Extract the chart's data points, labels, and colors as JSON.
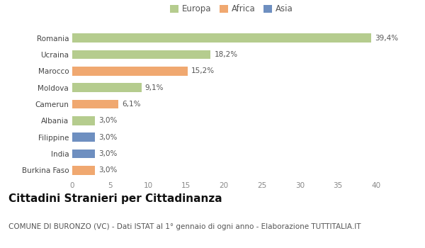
{
  "countries": [
    "Romania",
    "Ucraina",
    "Marocco",
    "Moldova",
    "Camerun",
    "Albania",
    "Filippine",
    "India",
    "Burkina Faso"
  ],
  "values": [
    39.4,
    18.2,
    15.2,
    9.1,
    6.1,
    3.0,
    3.0,
    3.0,
    3.0
  ],
  "labels": [
    "39,4%",
    "18,2%",
    "15,2%",
    "9,1%",
    "6,1%",
    "3,0%",
    "3,0%",
    "3,0%",
    "3,0%"
  ],
  "continents": [
    "Europa",
    "Europa",
    "Africa",
    "Europa",
    "Africa",
    "Europa",
    "Asia",
    "Asia",
    "Africa"
  ],
  "colors": {
    "Europa": "#b5cc8e",
    "Africa": "#f0a870",
    "Asia": "#6e8fc0"
  },
  "legend_order": [
    "Europa",
    "Africa",
    "Asia"
  ],
  "xlim": [
    0,
    42
  ],
  "xticks": [
    0,
    5,
    10,
    15,
    20,
    25,
    30,
    35,
    40
  ],
  "title": "Cittadini Stranieri per Cittadinanza",
  "subtitle": "COMUNE DI BURONZO (VC) - Dati ISTAT al 1° gennaio di ogni anno - Elaborazione TUTTITALIA.IT",
  "bg_color": "#ffffff",
  "plot_bg_color": "#ffffff",
  "bar_height": 0.55,
  "title_fontsize": 11,
  "subtitle_fontsize": 7.5,
  "label_fontsize": 7.5,
  "tick_fontsize": 7.5,
  "legend_fontsize": 8.5
}
